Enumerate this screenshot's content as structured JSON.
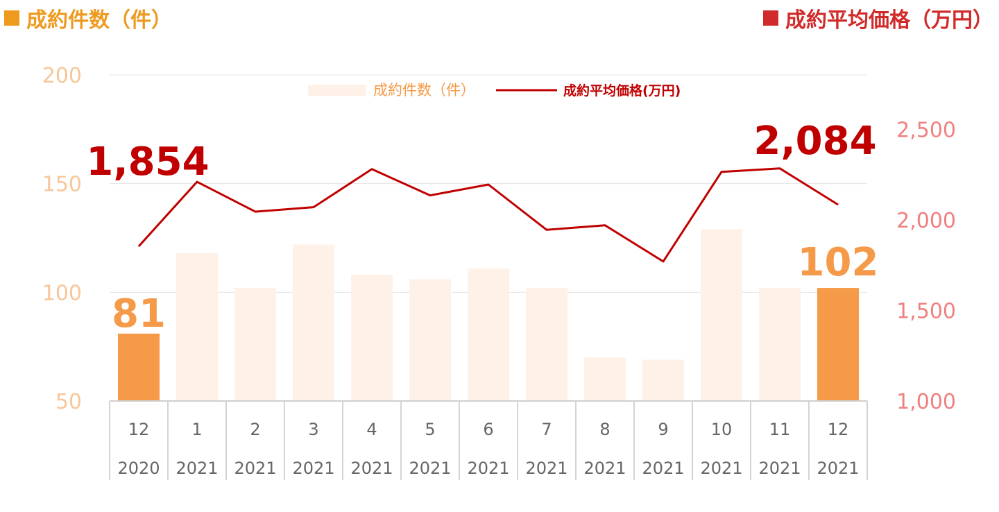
{
  "header_left": {
    "label": "成約件数（件）",
    "color": "#ee9a1f"
  },
  "header_right": {
    "label": "成約平均価格（万円）",
    "color": "#d12a2a"
  },
  "legend": {
    "bar_label": "成約件数（件）",
    "line_label": "成約平均価格(万円)"
  },
  "colors": {
    "bar_highlight": "#f59a48",
    "bar_faded": "#fdf1e8",
    "line": "#c00000",
    "left_axis": "#f6c79a",
    "right_axis": "#f08080",
    "tick": "#666666",
    "grid": "#e4e4e4"
  },
  "chart_data": {
    "type": "bar+line",
    "categories": [
      {
        "month": "12",
        "year": "2020"
      },
      {
        "month": "1",
        "year": "2021"
      },
      {
        "month": "2",
        "year": "2021"
      },
      {
        "month": "3",
        "year": "2021"
      },
      {
        "month": "4",
        "year": "2021"
      },
      {
        "month": "5",
        "year": "2021"
      },
      {
        "month": "6",
        "year": "2021"
      },
      {
        "month": "7",
        "year": "2021"
      },
      {
        "month": "8",
        "year": "2021"
      },
      {
        "month": "9",
        "year": "2021"
      },
      {
        "month": "10",
        "year": "2021"
      },
      {
        "month": "11",
        "year": "2021"
      },
      {
        "month": "12",
        "year": "2021"
      }
    ],
    "bar_series": {
      "name": "成約件数（件）",
      "values": [
        81,
        118,
        102,
        122,
        108,
        106,
        111,
        102,
        70,
        69,
        129,
        102,
        102
      ],
      "highlight": [
        true,
        false,
        false,
        false,
        false,
        false,
        false,
        false,
        false,
        false,
        false,
        false,
        true
      ]
    },
    "line_series": {
      "name": "成約平均価格(万円)",
      "values": [
        1854,
        2210,
        2045,
        2070,
        2280,
        2135,
        2195,
        1945,
        1970,
        1770,
        2265,
        2284,
        2084
      ]
    },
    "left_axis": {
      "ylim": [
        50,
        200
      ],
      "ticks": [
        "50",
        "100",
        "150",
        "200"
      ]
    },
    "right_axis": {
      "ylim": [
        1000,
        2800
      ],
      "ticks": [
        "1,000",
        "1,500",
        "2,000",
        "2,500"
      ]
    },
    "data_labels": {
      "bar_first": "81",
      "bar_last": "102",
      "line_first": "1,854",
      "line_last": "2,084"
    },
    "grid": true
  }
}
